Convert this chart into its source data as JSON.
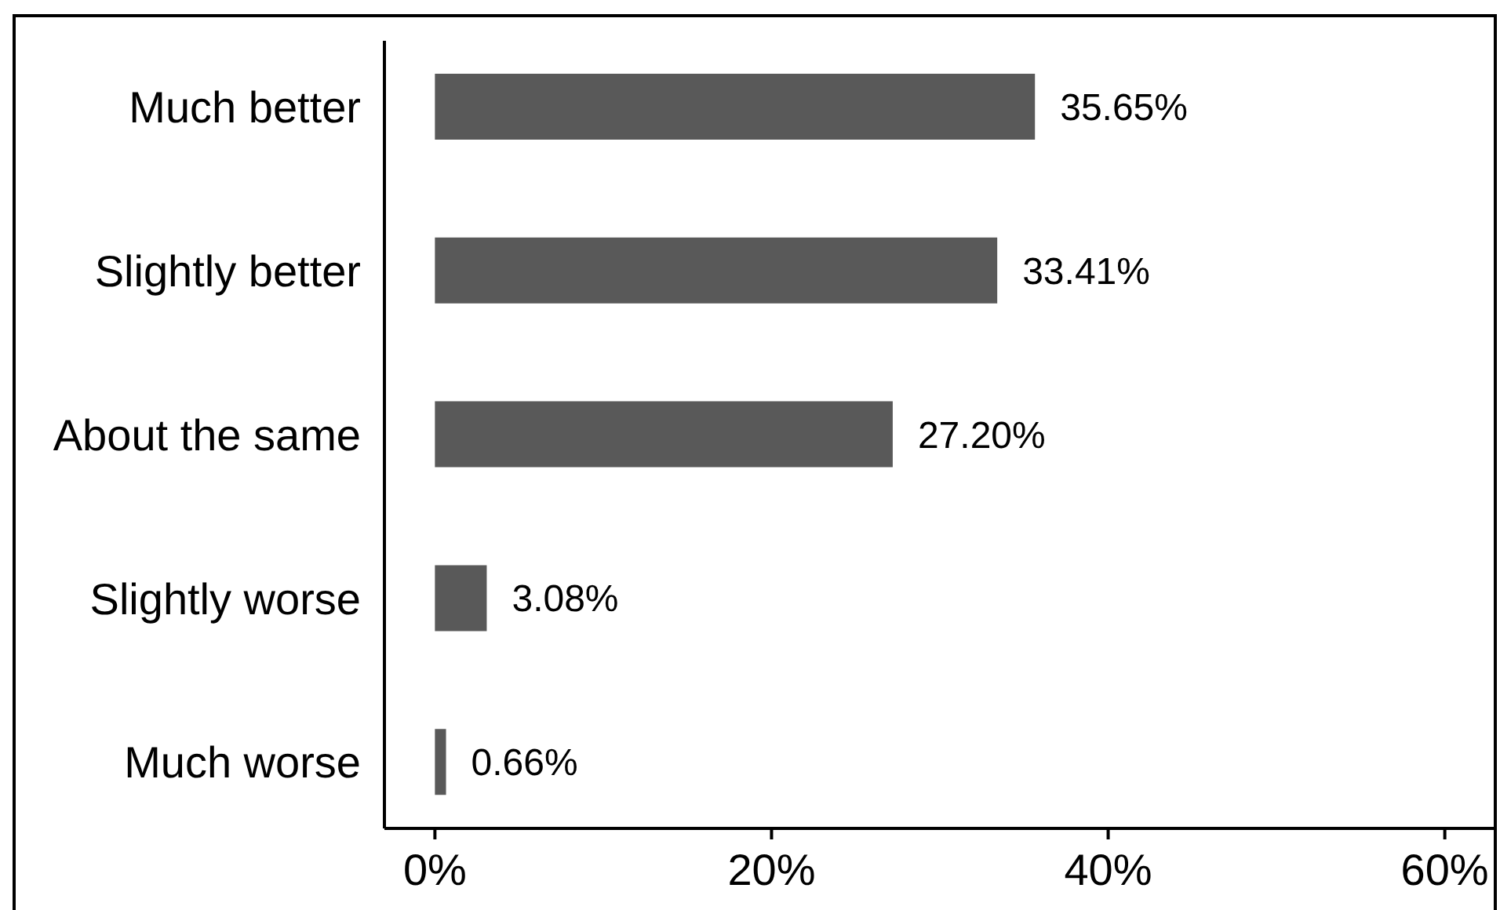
{
  "chart_data": {
    "type": "bar",
    "orientation": "horizontal",
    "categories": [
      "Much better",
      "Slightly better",
      "About the same",
      "Slightly worse",
      "Much worse"
    ],
    "values": [
      35.65,
      33.41,
      27.2,
      3.08,
      0.66
    ],
    "color": "#595959",
    "value_labels": [
      "35.65%",
      "33.41%",
      "27.20%",
      "3.08%",
      "0.66%"
    ],
    "xlim": [
      -3,
      63
    ],
    "xticks": [
      {
        "value": 0,
        "label": "0%"
      },
      {
        "value": 20,
        "label": "20%"
      },
      {
        "value": 40,
        "label": "40%"
      },
      {
        "value": 60,
        "label": "60%"
      }
    ]
  }
}
